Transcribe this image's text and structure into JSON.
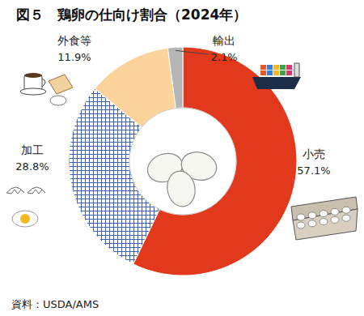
{
  "chart_data": {
    "type": "pie",
    "title": "図５　鶏卵の仕向け割合（2024年）",
    "categories": [
      "小売",
      "加工",
      "外食等",
      "輸出"
    ],
    "values": [
      57.1,
      28.8,
      11.9,
      2.1
    ],
    "value_labels": [
      "57.1%",
      "28.8%",
      "11.9%",
      "2.1%"
    ],
    "colors": [
      "#e2381c",
      "#3f62b0",
      "#fcd39b",
      "#b5b5b5"
    ],
    "data_labels": true,
    "source": "資料：USDA/AMS"
  }
}
